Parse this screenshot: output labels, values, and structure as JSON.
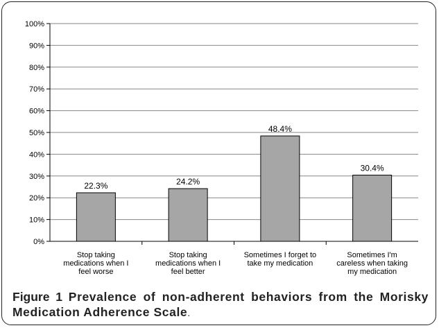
{
  "chart_data": {
    "type": "bar",
    "categories": [
      [
        "Stop taking",
        "medications when I",
        "feel worse"
      ],
      [
        "Stop taking",
        "medications when I",
        "feel better"
      ],
      [
        "Sometimes I forget to",
        "take my medication"
      ],
      [
        "Sometimes I'm",
        "careless when taking",
        "my medication"
      ]
    ],
    "values": [
      22.3,
      24.2,
      48.4,
      30.4
    ],
    "data_labels": [
      "22.3%",
      "24.2%",
      "48.4%",
      "30.4%"
    ],
    "yticks": [
      "0%",
      "10%",
      "20%",
      "30%",
      "40%",
      "50%",
      "60%",
      "70%",
      "80%",
      "90%",
      "100%"
    ],
    "ylim": [
      0,
      100
    ],
    "grid": true,
    "bar_color": "#a6a6a6",
    "bar_edge": "#000000",
    "grid_color": "#868686"
  },
  "caption": {
    "label": "Figure 1",
    "text": "Prevalence of non-adherent behaviors from the Morisky Medication Adherence Scale",
    "tail": "."
  }
}
